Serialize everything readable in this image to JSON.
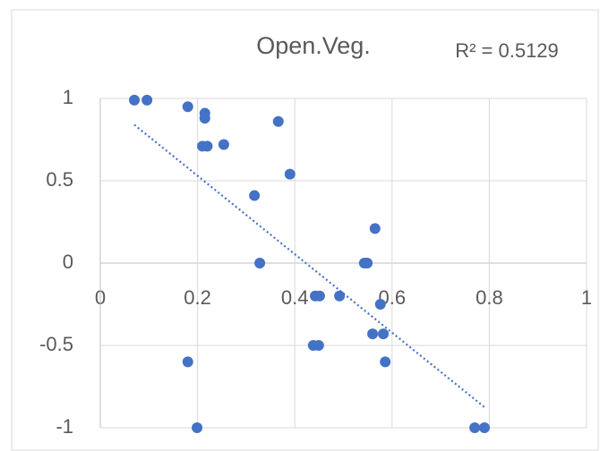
{
  "chart_data": {
    "type": "scatter",
    "title": "Open.Veg.",
    "annotation": "R² = 0.5129",
    "color": "#4472c4",
    "grid": true,
    "xlim": [
      0,
      1
    ],
    "xticks": [
      0,
      0.2,
      0.4,
      0.6,
      0.8,
      1
    ],
    "ylim": [
      -1,
      1
    ],
    "yticks": [
      -1,
      -0.5,
      0,
      0.5,
      1
    ],
    "x": [
      0.07,
      0.096,
      0.18,
      0.215,
      0.215,
      0.21,
      0.22,
      0.254,
      0.366,
      0.39,
      0.317,
      0.328,
      0.565,
      0.543,
      0.549,
      0.442,
      0.451,
      0.492,
      0.576,
      0.56,
      0.582,
      0.586,
      0.438,
      0.449,
      0.18,
      0.199,
      0.77,
      0.79
    ],
    "y": [
      0.99,
      0.99,
      0.95,
      0.91,
      0.88,
      0.71,
      0.71,
      0.72,
      0.86,
      0.54,
      0.41,
      0,
      0.21,
      0,
      0,
      -0.2,
      -0.2,
      -0.2,
      -0.25,
      -0.43,
      -0.43,
      -0.6,
      -0.5,
      -0.5,
      -0.6,
      -1,
      -1,
      -1
    ],
    "trendline": {
      "x": [
        0.07,
        0.79
      ],
      "y": [
        0.84,
        -0.875
      ]
    }
  }
}
